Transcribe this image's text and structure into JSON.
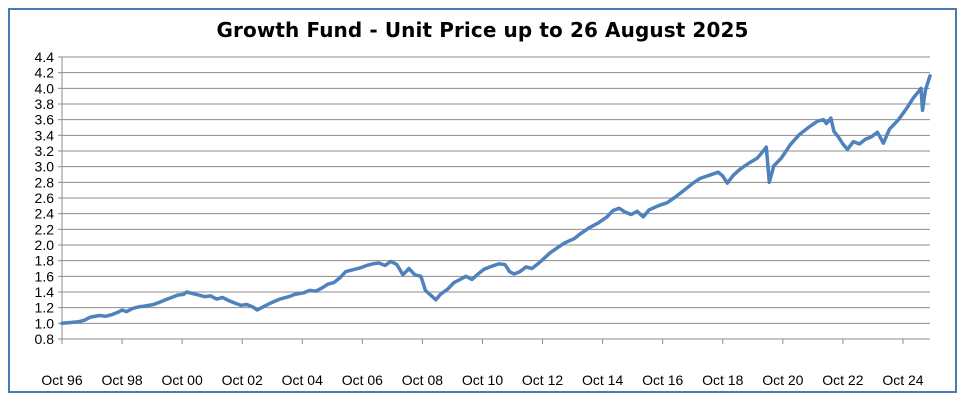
{
  "chart_data": {
    "type": "line",
    "title": "Growth Fund - Unit Price up to 26 August 2025",
    "xlabel": "",
    "ylabel": "",
    "ylim": [
      0.8,
      4.4
    ],
    "yticks": [
      0.8,
      1.0,
      1.2,
      1.4,
      1.6,
      1.8,
      2.0,
      2.2,
      2.4,
      2.6,
      2.8,
      3.0,
      3.2,
      3.4,
      3.6,
      3.8,
      4.0,
      4.2,
      4.4
    ],
    "ytick_labels": [
      "0.8",
      "1.0",
      "1.2",
      "1.4",
      "1.6",
      "1.8",
      "2.0",
      "2.2",
      "2.4",
      "2.6",
      "2.8",
      "3.0",
      "3.2",
      "3.4",
      "3.6",
      "3.8",
      "4.0",
      "4.2",
      "4.4"
    ],
    "xlim": [
      1996.75,
      2025.65
    ],
    "xticks": [
      1996.75,
      1998.75,
      2000.75,
      2002.75,
      2004.75,
      2006.75,
      2008.75,
      2010.75,
      2012.75,
      2014.75,
      2016.75,
      2018.75,
      2020.75,
      2022.75,
      2024.75
    ],
    "xtick_labels": [
      "Oct 96",
      "Oct 98",
      "Oct 00",
      "Oct 02",
      "Oct 04",
      "Oct 06",
      "Oct 08",
      "Oct 10",
      "Oct 12",
      "Oct 14",
      "Oct 16",
      "Oct 18",
      "Oct 20",
      "Oct 22",
      "Oct 24"
    ],
    "grid": {
      "horizontal": true,
      "vertical": false
    },
    "legend": "none",
    "series": [
      {
        "color": "#4f81bd",
        "points": [
          [
            1996.75,
            1.0
          ],
          [
            1997.0,
            1.01
          ],
          [
            1997.3,
            1.02
          ],
          [
            1997.5,
            1.04
          ],
          [
            1997.7,
            1.08
          ],
          [
            1998.0,
            1.1
          ],
          [
            1998.2,
            1.09
          ],
          [
            1998.4,
            1.11
          ],
          [
            1998.6,
            1.14
          ],
          [
            1998.75,
            1.17
          ],
          [
            1998.9,
            1.15
          ],
          [
            1999.1,
            1.19
          ],
          [
            1999.3,
            1.21
          ],
          [
            1999.5,
            1.22
          ],
          [
            1999.8,
            1.24
          ],
          [
            2000.0,
            1.27
          ],
          [
            2000.2,
            1.3
          ],
          [
            2000.4,
            1.33
          ],
          [
            2000.6,
            1.36
          ],
          [
            2000.8,
            1.37
          ],
          [
            2000.9,
            1.4
          ],
          [
            2001.1,
            1.38
          ],
          [
            2001.3,
            1.36
          ],
          [
            2001.5,
            1.34
          ],
          [
            2001.7,
            1.35
          ],
          [
            2001.9,
            1.31
          ],
          [
            2002.1,
            1.33
          ],
          [
            2002.3,
            1.29
          ],
          [
            2002.5,
            1.26
          ],
          [
            2002.7,
            1.23
          ],
          [
            2002.9,
            1.24
          ],
          [
            2003.1,
            1.21
          ],
          [
            2003.25,
            1.17
          ],
          [
            2003.5,
            1.22
          ],
          [
            2003.7,
            1.26
          ],
          [
            2004.0,
            1.31
          ],
          [
            2004.3,
            1.34
          ],
          [
            2004.5,
            1.37
          ],
          [
            2004.8,
            1.39
          ],
          [
            2005.0,
            1.42
          ],
          [
            2005.2,
            1.41
          ],
          [
            2005.4,
            1.45
          ],
          [
            2005.6,
            1.5
          ],
          [
            2005.8,
            1.52
          ],
          [
            2006.0,
            1.58
          ],
          [
            2006.2,
            1.66
          ],
          [
            2006.4,
            1.68
          ],
          [
            2006.7,
            1.71
          ],
          [
            2006.9,
            1.74
          ],
          [
            2007.1,
            1.76
          ],
          [
            2007.3,
            1.77
          ],
          [
            2007.5,
            1.74
          ],
          [
            2007.7,
            1.79
          ],
          [
            2007.9,
            1.75
          ],
          [
            2008.1,
            1.62
          ],
          [
            2008.3,
            1.7
          ],
          [
            2008.5,
            1.62
          ],
          [
            2008.7,
            1.6
          ],
          [
            2008.85,
            1.42
          ],
          [
            2009.0,
            1.37
          ],
          [
            2009.2,
            1.3
          ],
          [
            2009.35,
            1.37
          ],
          [
            2009.6,
            1.44
          ],
          [
            2009.8,
            1.52
          ],
          [
            2010.0,
            1.56
          ],
          [
            2010.2,
            1.6
          ],
          [
            2010.4,
            1.56
          ],
          [
            2010.6,
            1.63
          ],
          [
            2010.8,
            1.69
          ],
          [
            2011.0,
            1.72
          ],
          [
            2011.3,
            1.76
          ],
          [
            2011.5,
            1.75
          ],
          [
            2011.65,
            1.66
          ],
          [
            2011.8,
            1.63
          ],
          [
            2012.0,
            1.66
          ],
          [
            2012.2,
            1.72
          ],
          [
            2012.4,
            1.7
          ],
          [
            2012.6,
            1.76
          ],
          [
            2012.8,
            1.83
          ],
          [
            2013.0,
            1.9
          ],
          [
            2013.3,
            1.98
          ],
          [
            2013.5,
            2.03
          ],
          [
            2013.8,
            2.08
          ],
          [
            2014.0,
            2.14
          ],
          [
            2014.3,
            2.22
          ],
          [
            2014.6,
            2.28
          ],
          [
            2014.9,
            2.36
          ],
          [
            2015.1,
            2.44
          ],
          [
            2015.3,
            2.47
          ],
          [
            2015.5,
            2.42
          ],
          [
            2015.7,
            2.39
          ],
          [
            2015.9,
            2.43
          ],
          [
            2016.1,
            2.36
          ],
          [
            2016.3,
            2.45
          ],
          [
            2016.6,
            2.5
          ],
          [
            2016.9,
            2.54
          ],
          [
            2017.2,
            2.62
          ],
          [
            2017.5,
            2.71
          ],
          [
            2017.8,
            2.8
          ],
          [
            2018.0,
            2.85
          ],
          [
            2018.3,
            2.89
          ],
          [
            2018.6,
            2.93
          ],
          [
            2018.75,
            2.88
          ],
          [
            2018.9,
            2.79
          ],
          [
            2019.1,
            2.89
          ],
          [
            2019.3,
            2.96
          ],
          [
            2019.6,
            3.04
          ],
          [
            2019.9,
            3.11
          ],
          [
            2020.1,
            3.2
          ],
          [
            2020.2,
            3.25
          ],
          [
            2020.3,
            2.8
          ],
          [
            2020.45,
            3.01
          ],
          [
            2020.7,
            3.11
          ],
          [
            2021.0,
            3.28
          ],
          [
            2021.3,
            3.41
          ],
          [
            2021.6,
            3.5
          ],
          [
            2021.9,
            3.58
          ],
          [
            2022.1,
            3.6
          ],
          [
            2022.2,
            3.55
          ],
          [
            2022.35,
            3.62
          ],
          [
            2022.45,
            3.45
          ],
          [
            2022.6,
            3.38
          ],
          [
            2022.75,
            3.29
          ],
          [
            2022.9,
            3.22
          ],
          [
            2023.1,
            3.32
          ],
          [
            2023.3,
            3.29
          ],
          [
            2023.5,
            3.35
          ],
          [
            2023.7,
            3.38
          ],
          [
            2023.9,
            3.44
          ],
          [
            2024.0,
            3.37
          ],
          [
            2024.1,
            3.3
          ],
          [
            2024.3,
            3.48
          ],
          [
            2024.6,
            3.6
          ],
          [
            2024.9,
            3.76
          ],
          [
            2025.1,
            3.88
          ],
          [
            2025.25,
            3.95
          ],
          [
            2025.35,
            4.0
          ],
          [
            2025.4,
            3.72
          ],
          [
            2025.5,
            3.98
          ],
          [
            2025.6,
            4.1
          ],
          [
            2025.65,
            4.16
          ]
        ]
      }
    ]
  }
}
